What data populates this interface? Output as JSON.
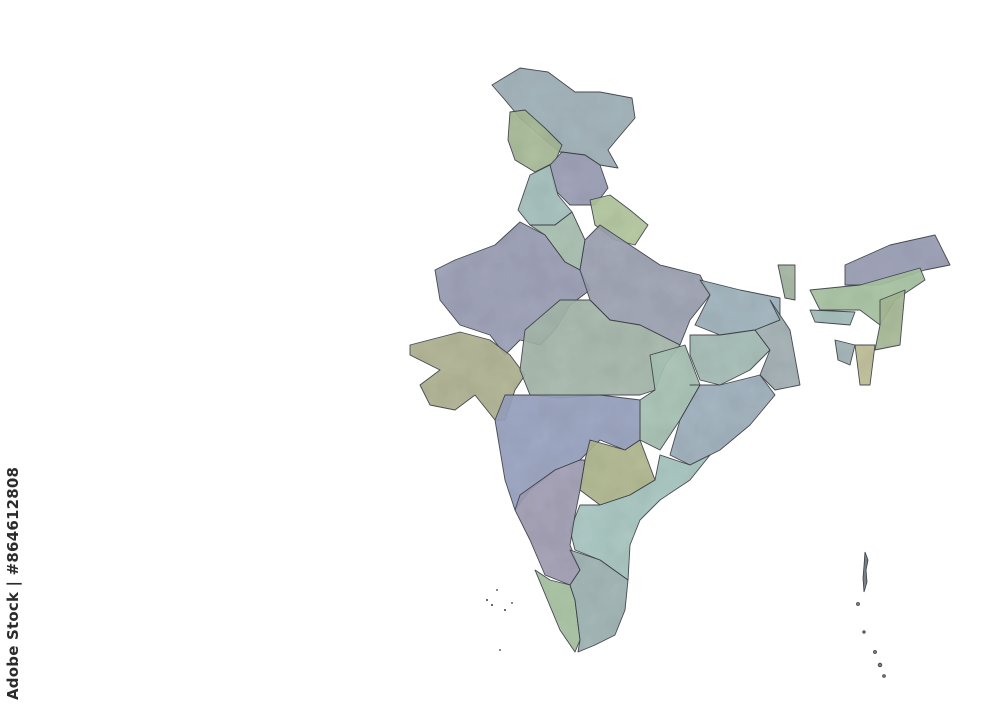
{
  "map": {
    "subject": "India states watercolor map",
    "colors": {
      "blue_grey": "#9fb1b8",
      "green": "#a9bc98",
      "purple_grey": "#9c9fb6",
      "teal": "#a5c1bd",
      "olive": "#b0b392",
      "slate_blue": "#9aa3c0",
      "border": "#3d4248"
    }
  },
  "credit": {
    "text": "Adobe Stock | #864612808"
  }
}
